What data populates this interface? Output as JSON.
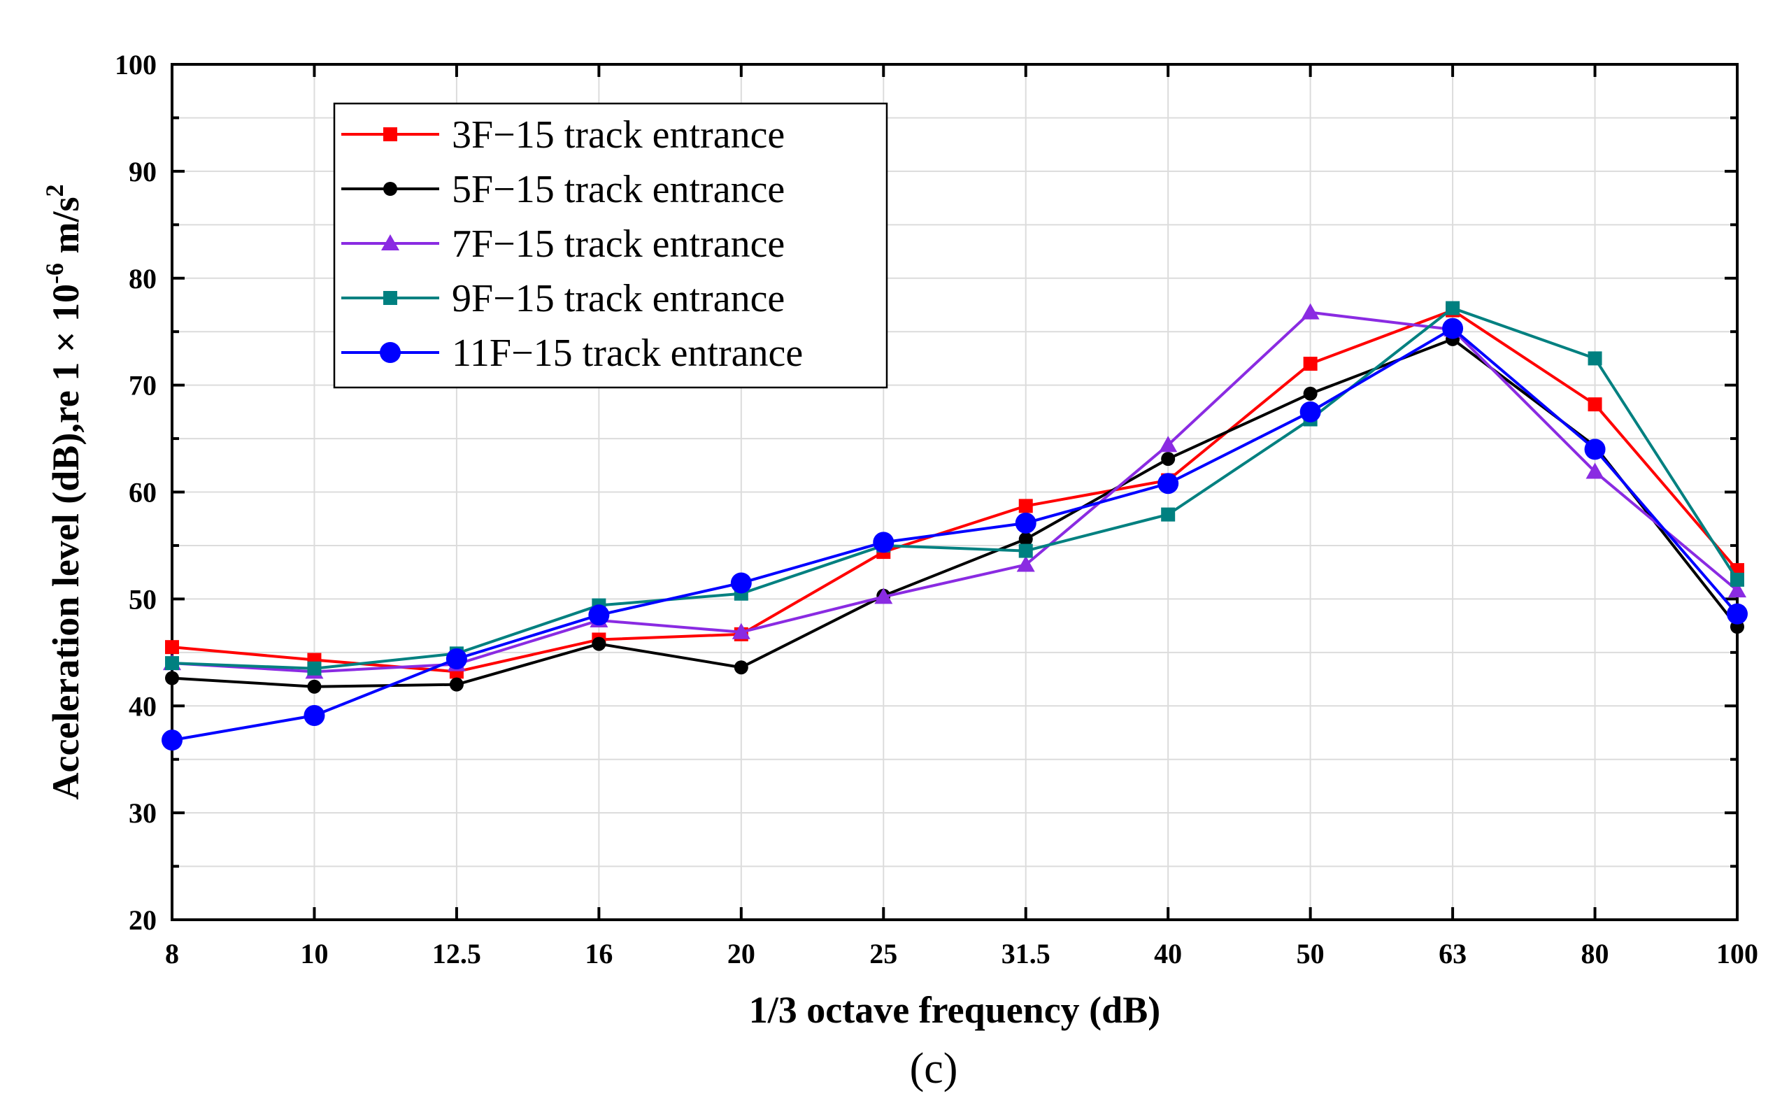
{
  "chart_data": {
    "type": "line",
    "panel_label": "(c)",
    "xlabel": "1/3 octave frequency (dB)",
    "ylabel_main": "Acceleration level (dB),re 1 × 10",
    "ylabel_exponent": "-6",
    "ylabel_unit": " m/s",
    "ylabel_unit_exponent": "2",
    "categories": [
      "8",
      "10",
      "12.5",
      "16",
      "20",
      "25",
      "31.5",
      "40",
      "50",
      "63",
      "80",
      "100"
    ],
    "ylim": [
      20,
      100
    ],
    "yticks": [
      20,
      30,
      40,
      50,
      60,
      70,
      80,
      90,
      100
    ],
    "grid": true,
    "legend_position": "top-left",
    "series": [
      {
        "name": "3F−15 track entrance",
        "color": "#ff0000",
        "marker": "square",
        "values": [
          45.5,
          44.3,
          43.2,
          46.2,
          46.7,
          54.4,
          58.7,
          61.1,
          72.0,
          77.0,
          68.2,
          52.7
        ]
      },
      {
        "name": "5F−15 track entrance",
        "color": "#000000",
        "marker": "circle",
        "values": [
          42.6,
          41.8,
          42.0,
          45.8,
          43.6,
          50.3,
          55.6,
          63.1,
          69.2,
          74.3,
          64.3,
          47.4
        ]
      },
      {
        "name": "7F−15 track entrance",
        "color": "#8a2be2",
        "marker": "triangle",
        "values": [
          44.0,
          43.2,
          43.9,
          48.0,
          46.9,
          50.2,
          53.2,
          64.4,
          76.8,
          75.2,
          61.9,
          50.8
        ]
      },
      {
        "name": "9F−15 track entrance",
        "color": "#008080",
        "marker": "square",
        "values": [
          44.0,
          43.5,
          44.9,
          49.4,
          50.5,
          55.0,
          54.5,
          57.9,
          66.8,
          77.2,
          72.5,
          51.8
        ]
      },
      {
        "name": "11F−15 track entrance",
        "color": "#0000ff",
        "marker": "big-circle",
        "values": [
          36.8,
          39.1,
          44.4,
          48.5,
          51.5,
          55.3,
          57.1,
          60.8,
          67.5,
          75.3,
          64.0,
          48.6
        ]
      }
    ]
  }
}
